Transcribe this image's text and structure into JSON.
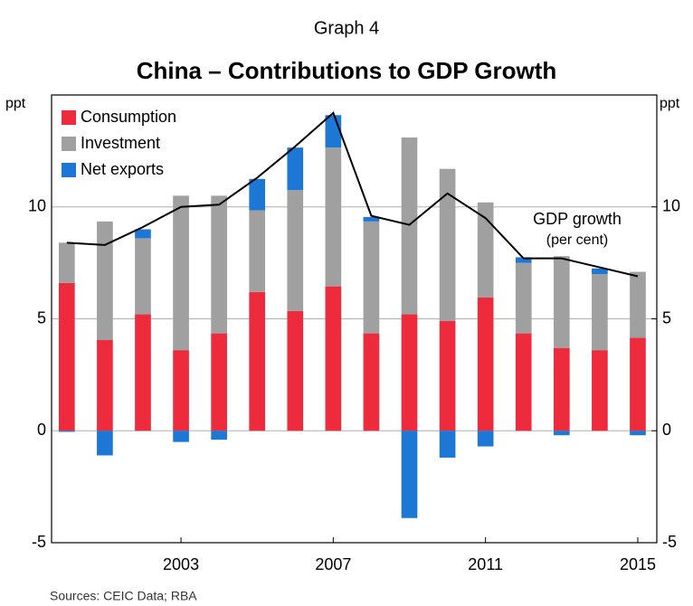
{
  "chart_data": {
    "type": "bar",
    "stacked": true,
    "supertitle": "Graph 4",
    "title": "China – Contributions to GDP Growth",
    "y_label": "ppt",
    "y2_label": "ppt",
    "source": "Sources: CEIC Data; RBA",
    "annotation": "(per cent)",
    "x": [
      2000,
      2001,
      2002,
      2003,
      2004,
      2005,
      2006,
      2007,
      2008,
      2009,
      2010,
      2011,
      2012,
      2013,
      2014,
      2015
    ],
    "xlim": [
      1999.6,
      2015.5
    ],
    "xticks": [
      2003,
      2007,
      2011,
      2015
    ],
    "ylim": [
      -5,
      15
    ],
    "yticks": [
      -5,
      0,
      5,
      10
    ],
    "y2lim": [
      -5,
      15
    ],
    "y2ticks": [
      -5,
      0,
      5,
      10
    ],
    "grid": true,
    "legend": "top-left",
    "series": [
      {
        "name": "Consumption",
        "color": "#ee2a3d",
        "values": [
          6.6,
          4.05,
          5.2,
          3.6,
          4.35,
          6.2,
          5.35,
          6.45,
          4.35,
          5.2,
          4.9,
          5.95,
          4.35,
          3.7,
          3.6,
          4.15
        ]
      },
      {
        "name": "Investment",
        "color": "#a0a0a0",
        "values": [
          1.8,
          5.3,
          3.4,
          6.9,
          6.15,
          3.65,
          5.4,
          6.2,
          5.0,
          7.9,
          6.8,
          4.25,
          3.15,
          4.1,
          3.4,
          2.95
        ]
      },
      {
        "name": "Net exports",
        "color": "#1c78d4",
        "values": [
          -0.05,
          -1.1,
          0.4,
          -0.5,
          -0.4,
          1.4,
          1.9,
          1.45,
          0.2,
          -3.9,
          -1.2,
          -0.7,
          0.25,
          -0.2,
          0.25,
          -0.2
        ]
      },
      {
        "name": "GDP growth",
        "type": "line",
        "color": "#000000",
        "values": [
          8.4,
          8.3,
          9.1,
          10.0,
          10.1,
          11.3,
          12.7,
          14.2,
          9.6,
          9.2,
          10.6,
          9.5,
          7.7,
          7.7,
          7.3,
          6.9
        ]
      }
    ]
  }
}
